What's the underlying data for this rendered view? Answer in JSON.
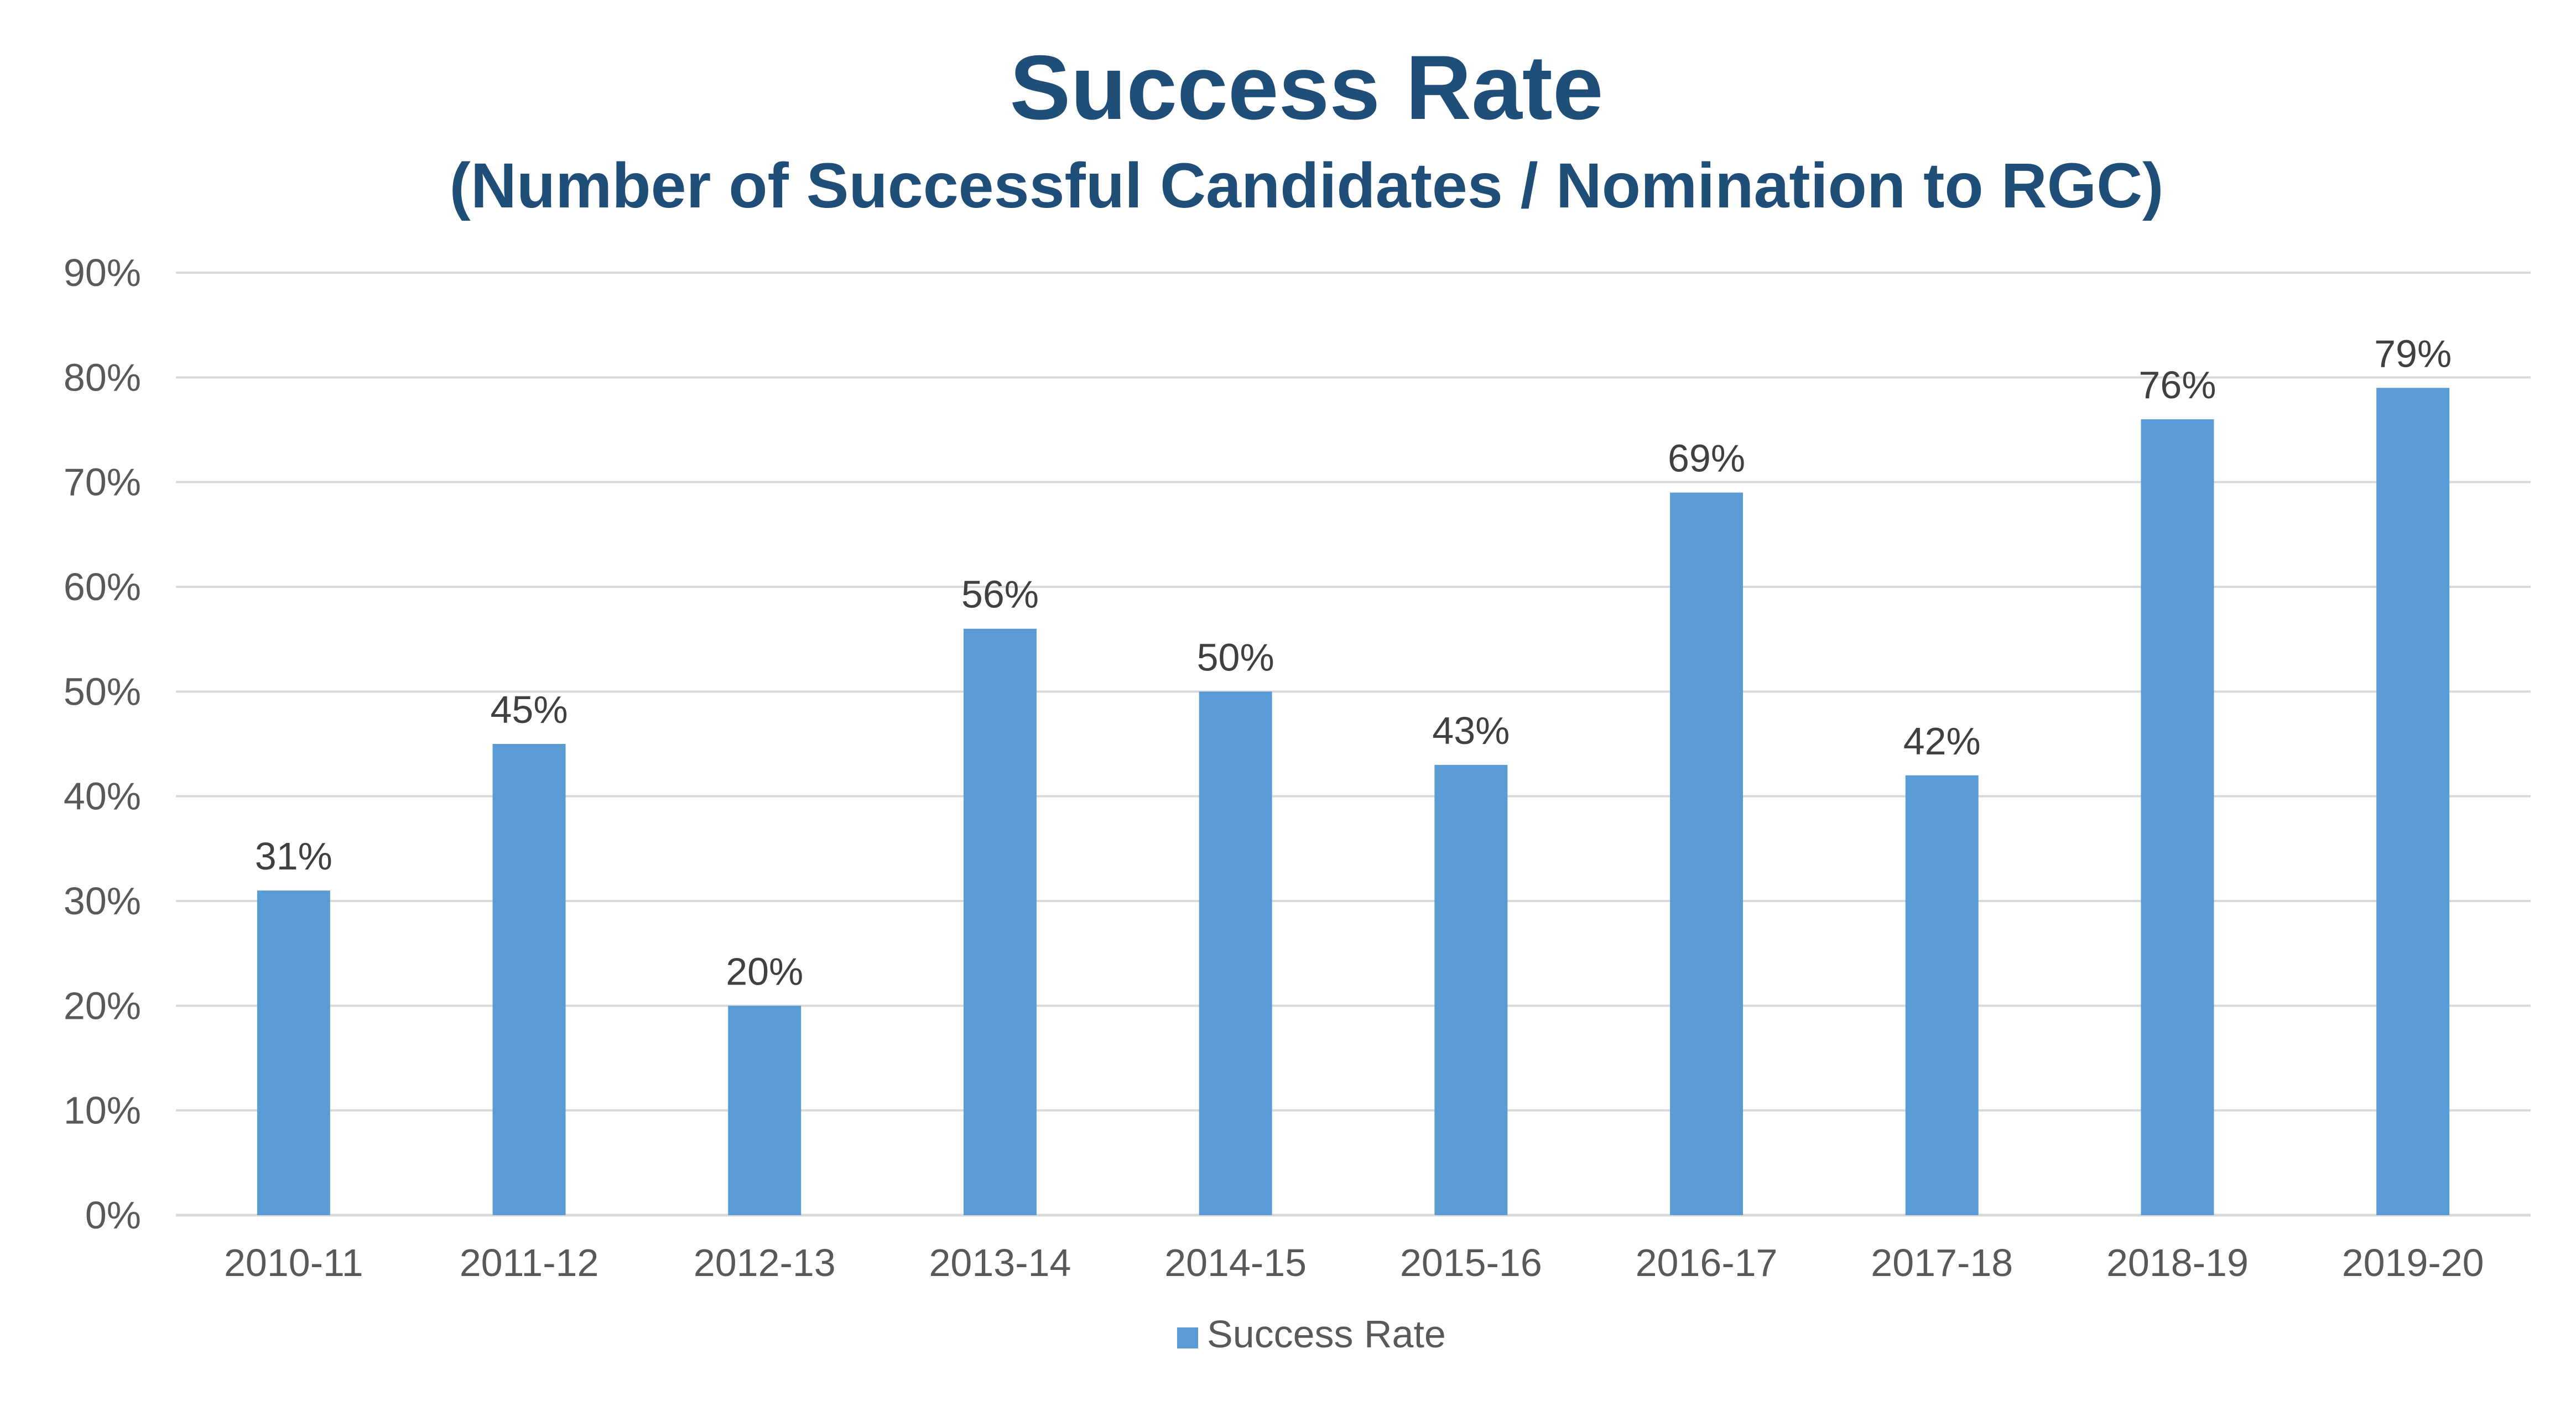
{
  "chart_data": {
    "type": "bar",
    "title": "Success Rate",
    "subtitle": "(Number of Successful Candidates / Nomination to RGC)",
    "categories": [
      "2010-11",
      "2011-12",
      "2012-13",
      "2013-14",
      "2014-15",
      "2015-16",
      "2016-17",
      "2017-18",
      "2018-19",
      "2019-20"
    ],
    "series": [
      {
        "name": "Success Rate",
        "values": [
          31,
          45,
          20,
          56,
          50,
          43,
          69,
          42,
          76,
          79
        ],
        "color": "#5b9bd5"
      }
    ],
    "data_labels": [
      "31%",
      "45%",
      "20%",
      "56%",
      "50%",
      "43%",
      "69%",
      "42%",
      "76%",
      "79%"
    ],
    "y_ticks": [
      "0%",
      "10%",
      "20%",
      "30%",
      "40%",
      "50%",
      "60%",
      "70%",
      "80%",
      "90%"
    ],
    "ylim": [
      0,
      90
    ],
    "y_unit": "%",
    "grid": true,
    "legend": {
      "position": "bottom",
      "entries": [
        "Success Rate"
      ]
    },
    "colors": {
      "title": "#1f4e79",
      "bar": "#5b9bd5",
      "grid": "#d9d9d9",
      "tick_text": "#595959",
      "label_text": "#404040"
    }
  }
}
